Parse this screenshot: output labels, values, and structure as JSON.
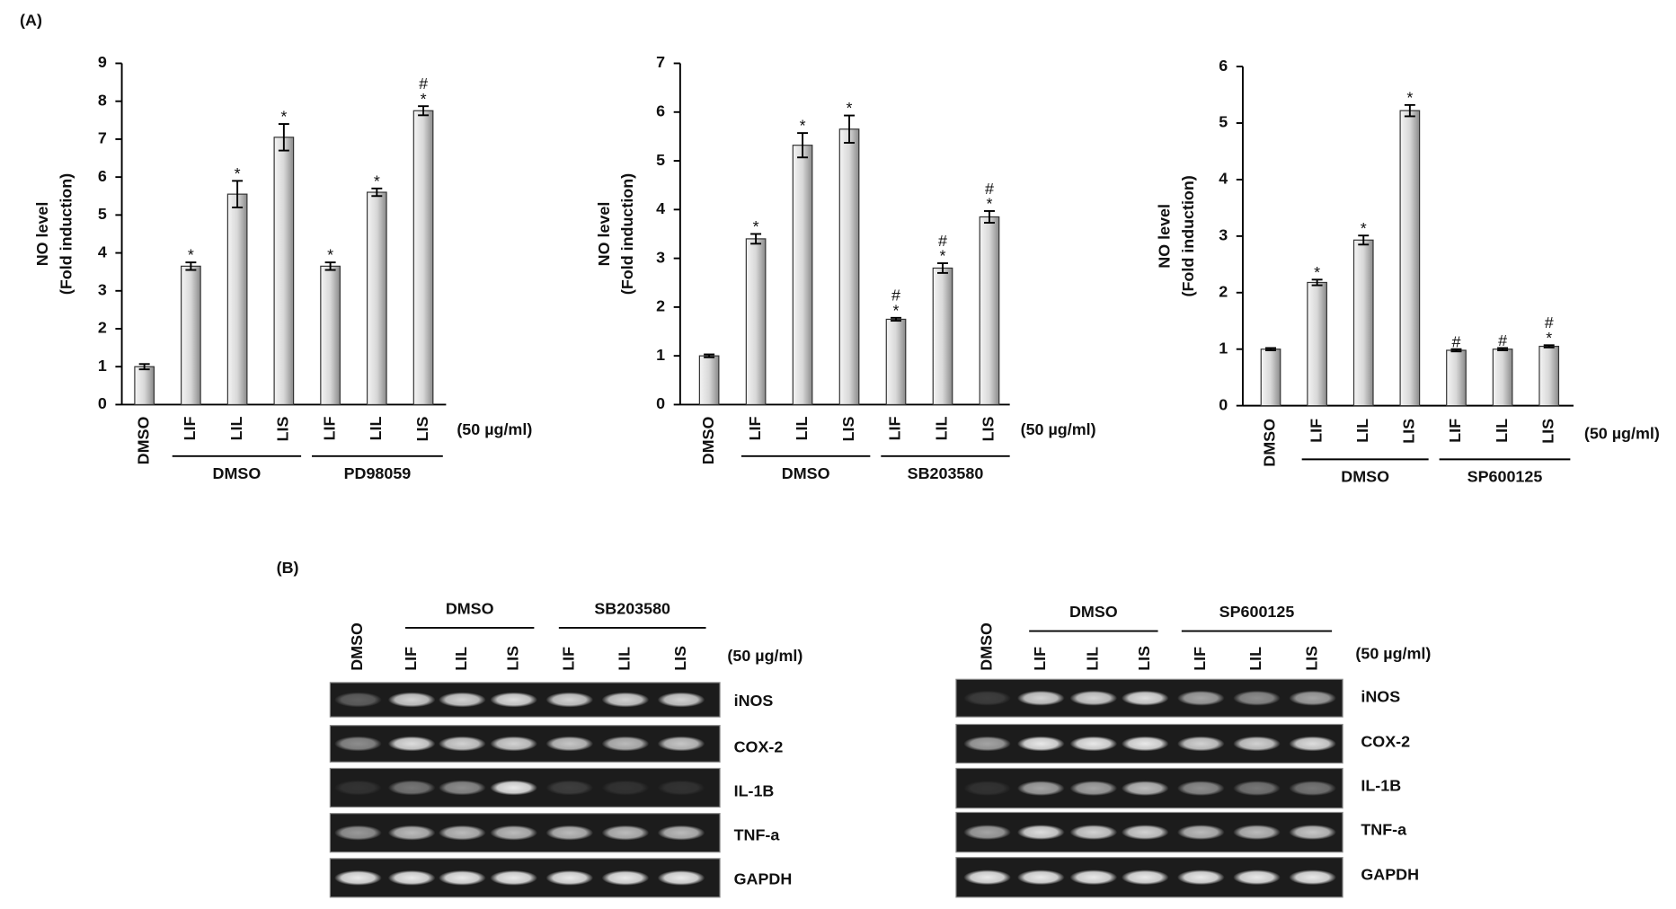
{
  "panel_labels": [
    "(A)",
    "(B)"
  ],
  "chart_data": [
    {
      "type": "bar",
      "y_label": [
        "NO level",
        "(Fold induction)"
      ],
      "categories": [
        "DMSO",
        "LIF",
        "LIL",
        "LIS",
        "LIF",
        "LIL",
        "LIS"
      ],
      "values": [
        1.0,
        3.65,
        5.55,
        7.05,
        3.65,
        5.6,
        7.75
      ],
      "errors": [
        0.07,
        0.1,
        0.35,
        0.35,
        0.1,
        0.1,
        0.12
      ],
      "annotations": [
        [],
        [
          "*"
        ],
        [
          "*"
        ],
        [
          "*"
        ],
        [
          "*"
        ],
        [
          "*"
        ],
        [
          "*",
          "#"
        ]
      ],
      "groups": [
        "DMSO",
        "PD98059"
      ],
      "unit": "(50 µg/ml)",
      "color": "#9a9a9a",
      "ylim": [
        0,
        9
      ],
      "yticks": [
        0,
        1,
        2,
        3,
        4,
        5,
        6,
        7,
        8,
        9
      ]
    },
    {
      "type": "bar",
      "y_label": [
        "NO level",
        "(Fold induction)"
      ],
      "categories": [
        "DMSO",
        "LIF",
        "LIL",
        "LIS",
        "LIF",
        "LIL",
        "LIS"
      ],
      "values": [
        1.0,
        3.4,
        5.32,
        5.65,
        1.75,
        2.8,
        3.85
      ],
      "errors": [
        0.03,
        0.1,
        0.25,
        0.28,
        0.03,
        0.1,
        0.12
      ],
      "annotations": [
        [],
        [
          "*"
        ],
        [
          "*"
        ],
        [
          "*"
        ],
        [
          "*",
          "#"
        ],
        [
          "*",
          "#"
        ],
        [
          "*",
          "#"
        ]
      ],
      "groups": [
        "DMSO",
        "SB203580"
      ],
      "unit": "(50 µg/ml)",
      "color": "#9a9a9a",
      "ylim": [
        0,
        7
      ],
      "yticks": [
        0,
        1,
        2,
        3,
        4,
        5,
        6,
        7
      ]
    },
    {
      "type": "bar",
      "y_label": [
        "NO level",
        "(Fold induction)"
      ],
      "categories": [
        "DMSO",
        "LIF",
        "LIL",
        "LIS",
        "LIF",
        "LIL",
        "LIS"
      ],
      "values": [
        1.0,
        2.18,
        2.93,
        5.22,
        0.98,
        1.0,
        1.05
      ],
      "errors": [
        0.02,
        0.05,
        0.08,
        0.1,
        0.02,
        0.02,
        0.02
      ],
      "annotations": [
        [],
        [
          "*"
        ],
        [
          "*"
        ],
        [
          "*"
        ],
        [
          "#"
        ],
        [
          "#"
        ],
        [
          "*",
          "#"
        ]
      ],
      "groups": [
        "DMSO",
        "SP600125"
      ],
      "unit": "(50 µg/ml)",
      "color": "#9a9a9a",
      "ylim": [
        0,
        6
      ],
      "yticks": [
        0,
        1,
        2,
        3,
        4,
        5,
        6
      ]
    }
  ],
  "gels": [
    {
      "lanes": [
        "DMSO",
        "LIF",
        "LIL",
        "LIS",
        "LIF",
        "LIL",
        "LIS"
      ],
      "groups": [
        "DMSO",
        "SB203580"
      ],
      "unit": "(50 µg/ml)",
      "genes": [
        "iNOS",
        "COX-2",
        "IL-1B",
        "TNF-a",
        "GAPDH"
      ]
    },
    {
      "lanes": [
        "DMSO",
        "LIF",
        "LIL",
        "LIS",
        "LIF",
        "LIL",
        "LIS"
      ],
      "groups": [
        "DMSO",
        "SP600125"
      ],
      "unit": "(50 µg/ml)",
      "genes": [
        "iNOS",
        "COX-2",
        "IL-1B",
        "TNF-a",
        "GAPDH"
      ]
    }
  ]
}
